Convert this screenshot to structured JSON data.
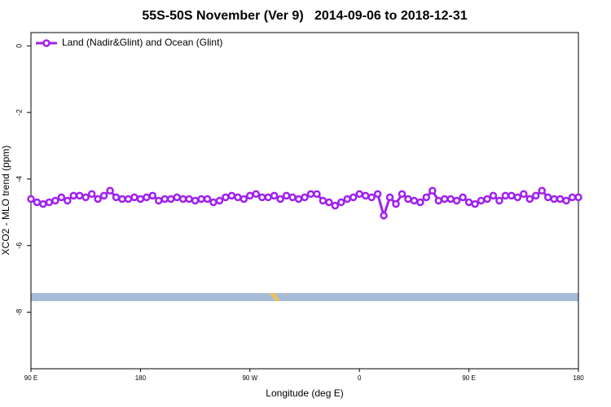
{
  "chart_data": {
    "type": "line",
    "title": "55S-50S November (Ver 9)   2014-09-06 to 2018-12-31",
    "x_label": "Longitude (deg E)",
    "y_label": "XCO2 - MLO trend (ppm)",
    "xlim": [
      90,
      540
    ],
    "ylim": [
      -9.7,
      0.4
    ],
    "xticks": [
      {
        "value": 90,
        "label": "90 E"
      },
      {
        "value": 180,
        "label": "180"
      },
      {
        "value": 270,
        "label": "90 W"
      },
      {
        "value": 360,
        "label": "0"
      },
      {
        "value": 450,
        "label": "90 E"
      },
      {
        "value": 540,
        "label": "180"
      }
    ],
    "yticks": [
      0,
      -2,
      -4,
      -6,
      -8
    ],
    "legend": "top-left",
    "x": [
      90,
      95,
      100,
      105,
      110,
      115,
      120,
      125,
      130,
      135,
      140,
      145,
      150,
      155,
      160,
      165,
      170,
      175,
      180,
      185,
      190,
      195,
      200,
      205,
      210,
      215,
      220,
      225,
      230,
      235,
      240,
      245,
      250,
      255,
      260,
      265,
      270,
      275,
      280,
      285,
      290,
      295,
      300,
      305,
      310,
      315,
      320,
      325,
      330,
      335,
      340,
      345,
      350,
      355,
      360,
      365,
      370,
      375,
      380,
      385,
      390,
      395,
      400,
      405,
      410,
      415,
      420,
      425,
      430,
      435,
      440,
      445,
      450,
      455,
      460,
      465,
      470,
      475,
      480,
      485,
      490,
      495,
      500,
      505,
      510,
      515,
      520,
      525,
      530,
      535,
      540
    ],
    "series": [
      {
        "name": "Land (Nadir&Glint) and Ocean (Glint)",
        "color": "#a020f0",
        "values": [
          -4.6,
          -4.7,
          -4.75,
          -4.7,
          -4.65,
          -4.55,
          -4.65,
          -4.5,
          -4.5,
          -4.55,
          -4.45,
          -4.6,
          -4.5,
          -4.35,
          -4.55,
          -4.6,
          -4.6,
          -4.55,
          -4.6,
          -4.55,
          -4.5,
          -4.65,
          -4.6,
          -4.6,
          -4.55,
          -4.6,
          -4.6,
          -4.65,
          -4.6,
          -4.6,
          -4.7,
          -4.65,
          -4.55,
          -4.5,
          -4.55,
          -4.6,
          -4.5,
          -4.45,
          -4.55,
          -4.55,
          -4.5,
          -4.6,
          -4.5,
          -4.55,
          -4.6,
          -4.55,
          -4.45,
          -4.45,
          -4.65,
          -4.7,
          -4.8,
          -4.7,
          -4.6,
          -4.55,
          -4.45,
          -4.5,
          -4.55,
          -4.45,
          -5.1,
          -4.55,
          -4.75,
          -4.45,
          -4.6,
          -4.65,
          -4.7,
          -4.55,
          -4.35,
          -4.65,
          -4.6,
          -4.6,
          -4.65,
          -4.55,
          -4.7,
          -4.75,
          -4.65,
          -4.6,
          -4.5,
          -4.65,
          -4.5,
          -4.5,
          -4.55,
          -4.45,
          -4.6,
          -4.5,
          -4.35,
          -4.55,
          -4.6,
          -4.6,
          -4.65,
          -4.55,
          -4.55
        ]
      }
    ]
  }
}
